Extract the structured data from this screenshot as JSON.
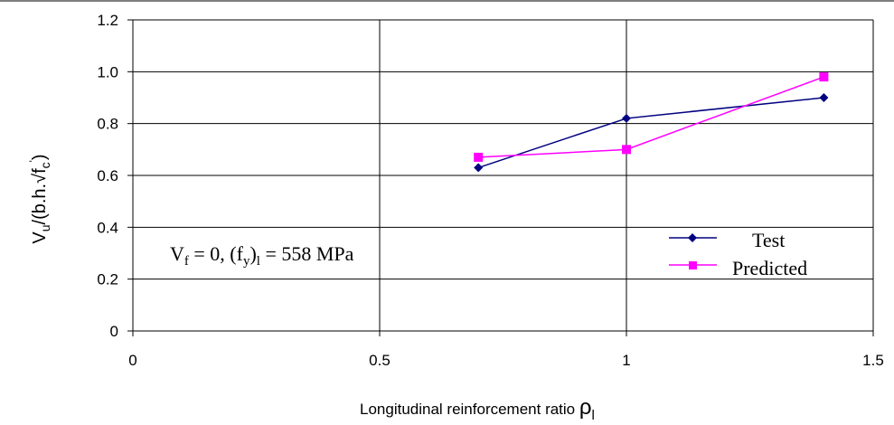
{
  "chart_data": {
    "type": "line",
    "xlabel": {
      "main": "Longitudinal reinforcement ratio ",
      "symbol": "ρ",
      "sub": "l"
    },
    "ylabel": {
      "v": "V",
      "v_sub": "u",
      "mid": "/(b.h.√f",
      "f_sub": "c",
      "prime": "'",
      "end": ")"
    },
    "xlim": [
      0,
      1.5
    ],
    "ylim": [
      0,
      1.2
    ],
    "x_ticks": [
      {
        "value": 0,
        "label": "0"
      },
      {
        "value": 0.5,
        "label": "0.5"
      },
      {
        "value": 1,
        "label": "1"
      },
      {
        "value": 1.5,
        "label": "1.5"
      }
    ],
    "y_ticks": [
      {
        "value": 0,
        "label": "0"
      },
      {
        "value": 0.2,
        "label": "0.2"
      },
      {
        "value": 0.4,
        "label": "0.4"
      },
      {
        "value": 0.6,
        "label": "0.6"
      },
      {
        "value": 0.8,
        "label": "0.8"
      },
      {
        "value": 1.0,
        "label": "1.0"
      },
      {
        "value": 1.2,
        "label": "1.2"
      }
    ],
    "grid": true,
    "legend_position": "bottom-right",
    "series": [
      {
        "name": "Test",
        "color": "#000080",
        "marker": "diamond",
        "x": [
          0.7,
          1.0,
          1.4
        ],
        "y": [
          0.63,
          0.82,
          0.9
        ]
      },
      {
        "name": "Predicted",
        "color": "#ff00ff",
        "marker": "square",
        "x": [
          0.7,
          1.0,
          1.4
        ],
        "y": [
          0.67,
          0.7,
          0.98
        ]
      }
    ],
    "annotation": {
      "p1": "V",
      "p1_sub": "f",
      "p2": " = 0, (f",
      "p2_sub": "y",
      "p3": ")",
      "p3_sub": "l",
      "p4": " = 558 MPa"
    }
  }
}
